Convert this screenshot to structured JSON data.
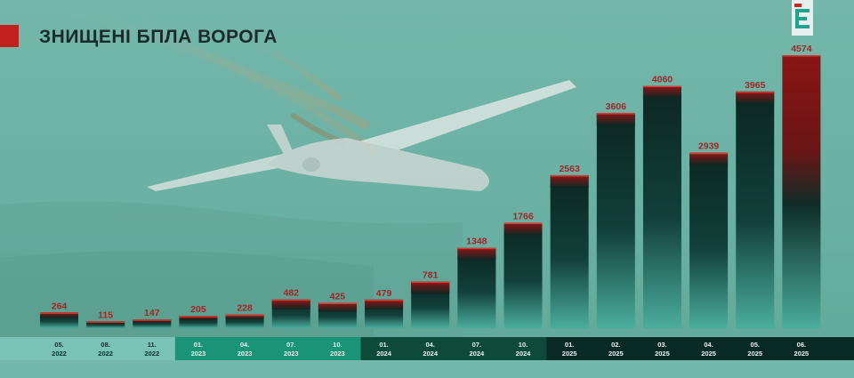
{
  "header": {
    "title": "ЗНИЩЕНІ БПЛА ВОРОГА"
  },
  "logo": {
    "icon": "publisher-logo-icon"
  },
  "chart_data": {
    "type": "bar",
    "title": "ЗНИЩЕНІ БПЛА ВОРОГА",
    "xlabel": "",
    "ylabel": "",
    "categories": [
      {
        "month": "05.",
        "year": "2022"
      },
      {
        "month": "08.",
        "year": "2022"
      },
      {
        "month": "11.",
        "year": "2022"
      },
      {
        "month": "01.",
        "year": "2023"
      },
      {
        "month": "04.",
        "year": "2023"
      },
      {
        "month": "07.",
        "year": "2023"
      },
      {
        "month": "10.",
        "year": "2023"
      },
      {
        "month": "01.",
        "year": "2024"
      },
      {
        "month": "04.",
        "year": "2024"
      },
      {
        "month": "07.",
        "year": "2024"
      },
      {
        "month": "10.",
        "year": "2024"
      },
      {
        "month": "01.",
        "year": "2025"
      },
      {
        "month": "02.",
        "year": "2025"
      },
      {
        "month": "03.",
        "year": "2025"
      },
      {
        "month": "04.",
        "year": "2025"
      },
      {
        "month": "05.",
        "year": "2025"
      },
      {
        "month": "06.",
        "year": "2025"
      }
    ],
    "values": [
      264,
      115,
      147,
      205,
      228,
      482,
      425,
      479,
      781,
      1348,
      1766,
      2563,
      3606,
      4060,
      2939,
      3965,
      4574
    ],
    "ylim": [
      0,
      4574
    ],
    "grid": false,
    "legend": "none",
    "data_labels": true,
    "colors": {
      "background": "#6fb4a6",
      "bar_dark": "#0d2622",
      "bar_light": "#45a797",
      "bar_cap": "#8a1a1a",
      "label": "#a52424",
      "year_band_2022": "#7ac2b6",
      "year_band_2023": "#199477",
      "year_band_2024": "#0d4a3a",
      "year_band_2025": "#0a2a25"
    }
  }
}
